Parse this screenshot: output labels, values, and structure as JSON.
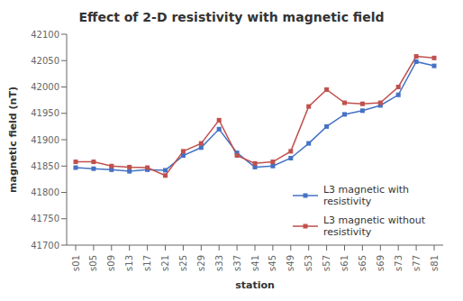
{
  "chart_data": {
    "type": "line",
    "title": "Effect of 2-D resistivity with magnetic field",
    "xlabel": "station",
    "ylabel": "magnetic field (nT)",
    "categories": [
      "s01",
      "s05",
      "s09",
      "s13",
      "s17",
      "s21",
      "s25",
      "s29",
      "s33",
      "s37",
      "s41",
      "s45",
      "s49",
      "s53",
      "s57",
      "s61",
      "s65",
      "s69",
      "s73",
      "s77",
      "s81"
    ],
    "series": [
      {
        "name": "L3 magnetic with\nresistivity",
        "color": "#4472C4",
        "marker": "square",
        "values": [
          41847,
          41845,
          41843,
          41840,
          41843,
          41842,
          41870,
          41885,
          41920,
          41875,
          41848,
          41850,
          41865,
          41893,
          41925,
          41948,
          41955,
          41965,
          41985,
          42048,
          42040
        ]
      },
      {
        "name": "L3 magnetic without\nresistivity",
        "color": "#C0504D",
        "marker": "square",
        "values": [
          41858,
          41858,
          41850,
          41848,
          41847,
          41832,
          41878,
          41893,
          41937,
          41870,
          41855,
          41858,
          41878,
          41963,
          41995,
          41970,
          41968,
          41970,
          42000,
          42058,
          42055
        ]
      }
    ],
    "ylim": [
      41700,
      42100
    ],
    "yticks": [
      41700,
      41750,
      41800,
      41850,
      41900,
      41950,
      42000,
      42050,
      42100
    ],
    "legend": "lower right",
    "grid": false
  }
}
